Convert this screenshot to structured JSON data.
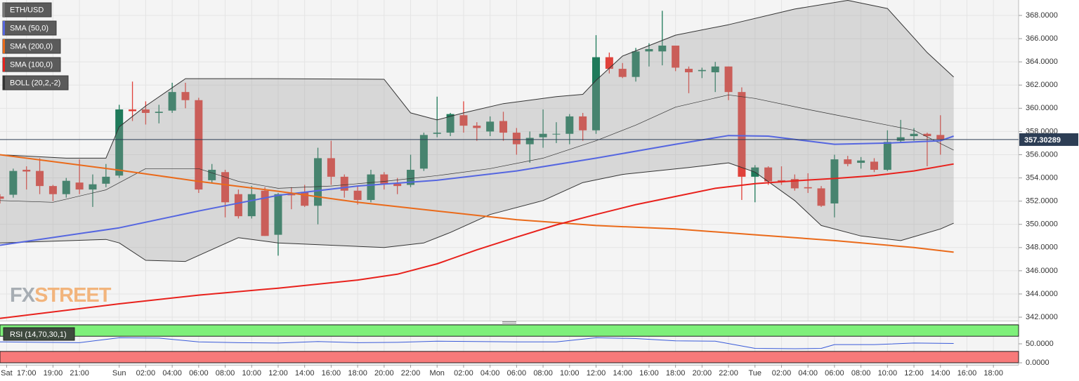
{
  "chart_data": [
    {
      "type": "candlestick",
      "candles": {
        "name": "ETH/USD",
        "up_color": "#1f7a5a",
        "down_color": "#e0413a",
        "x": [
          15,
          16,
          17,
          18,
          19,
          20,
          21,
          22,
          23,
          24,
          25,
          26,
          27,
          28,
          29,
          30,
          31,
          32,
          33,
          34,
          35,
          36,
          37,
          38,
          39,
          40,
          41,
          42,
          43,
          44,
          45,
          46,
          47,
          48,
          49,
          50,
          51,
          52,
          53,
          54,
          55,
          56,
          57,
          58,
          59,
          60,
          61,
          62,
          63,
          64,
          65,
          66,
          67,
          68,
          69,
          70,
          71,
          72,
          73,
          74,
          75,
          76,
          77,
          78,
          79,
          80,
          81,
          82,
          83,
          84,
          85,
          86
        ],
        "open": [
          352.4,
          352.55,
          354.7,
          354.6,
          353.3,
          352.6,
          353.6,
          353.0,
          353.5,
          354.2,
          359.9,
          359.9,
          359.6,
          359.8,
          361.4,
          360.7,
          353.8,
          354.5,
          352.6,
          350.7,
          352.9,
          349.1,
          352.6,
          352.8,
          351.6,
          355.7,
          354.1,
          352.9,
          352.1,
          354.3,
          353.5,
          353.4,
          354.8,
          357.8,
          357.9,
          359.4,
          358.5,
          358.0,
          358.9,
          357.9,
          356.9,
          357.5,
          357.8,
          357.8,
          359.3,
          358.1,
          364.4,
          363.4,
          362.7,
          364.9,
          364.9,
          365.4,
          363.4,
          363.2,
          363.1,
          363.6,
          361.4,
          354.1,
          354.9,
          353.8,
          353.9,
          353.2,
          353.1,
          351.8,
          355.6,
          355.3,
          355.4,
          354.7,
          357.2,
          357.6,
          357.8,
          357.7
        ],
        "high": [
          352.6,
          354.8,
          355.0,
          355.7,
          353.4,
          354.0,
          355.6,
          354.3,
          355.2,
          360.3,
          362.3,
          360.6,
          360.3,
          362.2,
          362.2,
          360.9,
          355.2,
          354.7,
          353.0,
          353.3,
          353.2,
          352.7,
          353.2,
          353.4,
          356.6,
          357.2,
          354.3,
          353.3,
          354.7,
          354.5,
          354.0,
          356.0,
          357.9,
          361.0,
          359.6,
          360.6,
          358.8,
          359.3,
          359.7,
          358.3,
          358.0,
          359.9,
          358.8,
          359.5,
          359.6,
          366.3,
          364.8,
          363.9,
          365.2,
          365.6,
          368.4,
          365.4,
          363.6,
          363.5,
          364.0,
          363.6,
          361.8,
          355.1,
          355.0,
          355.0,
          354.3,
          354.4,
          353.3,
          356.0,
          355.9,
          355.8,
          355.7,
          358.1,
          359.0,
          358.3,
          357.9,
          359.4
        ],
        "low": [
          351.8,
          352.3,
          353.0,
          352.6,
          352.0,
          352.3,
          352.6,
          351.5,
          353.2,
          354.0,
          358.9,
          358.6,
          358.7,
          359.6,
          360.0,
          352.7,
          353.6,
          350.6,
          350.5,
          350.5,
          349.0,
          347.3,
          351.3,
          351.5,
          350.0,
          353.4,
          352.3,
          351.7,
          351.9,
          353.0,
          352.6,
          353.2,
          354.6,
          357.5,
          357.6,
          357.9,
          357.2,
          357.6,
          357.2,
          356.0,
          355.3,
          356.6,
          357.0,
          356.9,
          357.2,
          357.8,
          363.0,
          362.6,
          362.3,
          363.6,
          363.7,
          363.2,
          361.3,
          362.6,
          361.4,
          360.7,
          352.1,
          351.9,
          353.4,
          353.4,
          352.9,
          352.7,
          351.5,
          350.6,
          355.0,
          354.8,
          354.5,
          354.6,
          357.0,
          357.2,
          355.0,
          356.0
        ],
        "close": [
          352.2,
          354.6,
          354.55,
          353.3,
          352.6,
          353.75,
          353.0,
          353.45,
          354.1,
          359.9,
          359.75,
          359.6,
          359.7,
          361.4,
          360.7,
          353.0,
          354.7,
          351.9,
          350.7,
          352.6,
          349.0,
          352.6,
          352.5,
          351.6,
          355.7,
          354.1,
          352.9,
          352.1,
          354.3,
          353.5,
          353.3,
          354.7,
          357.7,
          357.9,
          359.5,
          358.5,
          358.3,
          358.85,
          357.9,
          356.9,
          357.45,
          357.8,
          357.8,
          359.3,
          358.1,
          364.4,
          363.4,
          362.7,
          364.9,
          365.1,
          365.4,
          363.5,
          363.1,
          363.3,
          363.6,
          361.4,
          354.1,
          354.9,
          353.7,
          353.7,
          353.1,
          353.1,
          351.6,
          355.6,
          355.2,
          355.5,
          354.7,
          357.1,
          357.5,
          357.8,
          357.6,
          357.3
        ]
      },
      "series": [
        {
          "name": "SMA (50,0)",
          "color": "#5566e0",
          "x": [
            15,
            24,
            30,
            36,
            42,
            48,
            54,
            60,
            66,
            70,
            73,
            78,
            82,
            86,
            87
          ],
          "values": [
            348.2,
            349.7,
            351.15,
            352.5,
            353.3,
            353.8,
            354.6,
            355.7,
            356.9,
            357.65,
            357.6,
            356.9,
            357.0,
            357.2,
            357.6
          ]
        },
        {
          "name": "SMA (200,0)",
          "color": "#ea6a1a",
          "x": [
            15,
            24,
            30,
            36,
            42,
            48,
            54,
            60,
            66,
            72,
            78,
            84,
            87
          ],
          "values": [
            356.0,
            354.67,
            353.7,
            352.85,
            351.9,
            351.15,
            350.4,
            349.9,
            349.6,
            349.1,
            348.6,
            348.0,
            347.6
          ]
        },
        {
          "name": "SMA (100,0)",
          "color": "#e8211c",
          "x": [
            15,
            24,
            30,
            36,
            42,
            45,
            48,
            51,
            54,
            57,
            60,
            63,
            66,
            69,
            72,
            75,
            78,
            81,
            84,
            87
          ],
          "values": [
            341.9,
            343.15,
            343.9,
            344.5,
            345.2,
            345.7,
            346.6,
            347.8,
            348.9,
            349.95,
            350.85,
            351.7,
            352.4,
            353.1,
            353.5,
            353.75,
            353.95,
            354.2,
            354.6,
            355.2
          ]
        }
      ],
      "bollinger": {
        "name": "BOLL (20,2,-2)",
        "color": "#333333",
        "fill": "#9a9a9a",
        "upper": {
          "x": [
            15,
            20,
            23,
            24,
            26,
            29,
            35,
            44,
            46,
            48,
            50,
            53,
            57,
            59,
            60,
            62,
            66,
            70,
            75,
            79,
            82,
            85,
            87
          ],
          "values": [
            356.0,
            355.7,
            355.7,
            358.4,
            360.2,
            362.55,
            362.55,
            362.5,
            359.6,
            359.0,
            359.6,
            360.4,
            361.0,
            361.2,
            362.4,
            364.5,
            366.3,
            367.2,
            368.55,
            369.3,
            368.6,
            364.8,
            362.7
          ]
        },
        "middle": {
          "x": [
            15,
            19,
            23,
            26,
            30,
            33,
            36,
            40,
            44,
            48,
            52,
            56,
            60,
            63,
            66,
            70,
            72,
            76,
            80,
            84,
            87
          ],
          "values": [
            352.05,
            351.9,
            352.97,
            354.8,
            354.8,
            353.7,
            353.1,
            353.3,
            353.7,
            354.2,
            354.8,
            355.7,
            357.2,
            358.55,
            360.1,
            361.15,
            360.85,
            359.9,
            359.0,
            358.1,
            356.4
          ]
        },
        "lower": {
          "x": [
            15,
            23,
            24,
            26,
            29,
            33,
            36,
            44,
            47,
            49,
            52,
            56,
            59,
            62,
            67,
            70,
            72,
            75,
            77,
            80,
            83,
            86,
            87
          ],
          "values": [
            348.4,
            348.7,
            348.4,
            346.9,
            346.8,
            348.85,
            348.4,
            348.0,
            348.4,
            349.3,
            350.85,
            352.05,
            353.6,
            354.3,
            354.9,
            355.3,
            354.5,
            352.05,
            349.9,
            349.0,
            348.6,
            349.6,
            350.1
          ]
        }
      },
      "last_price": 357.30289,
      "watermark": [
        "FX",
        "STREET"
      ],
      "xlim": [
        15,
        91.9
      ],
      "ylim": [
        341.7,
        369.33
      ],
      "yticks": [
        {
          "value": 342,
          "label": "342.0000"
        },
        {
          "value": 344,
          "label": "344.0000"
        },
        {
          "value": 346,
          "label": "346.0000"
        },
        {
          "value": 348,
          "label": "348.0000"
        },
        {
          "value": 350,
          "label": "350.0000"
        },
        {
          "value": 352,
          "label": "352.0000"
        },
        {
          "value": 354,
          "label": "354.0000"
        },
        {
          "value": 356,
          "label": "356.0000"
        },
        {
          "value": 358,
          "label": "358.0000"
        },
        {
          "value": 360,
          "label": "360.0000"
        },
        {
          "value": 362,
          "label": "362.0000"
        },
        {
          "value": 364,
          "label": "364.0000"
        },
        {
          "value": 366,
          "label": "366.0000"
        },
        {
          "value": 368,
          "label": "368.0000"
        }
      ],
      "xticks": [
        {
          "value": 15.5,
          "label": "Sat"
        },
        {
          "value": 17,
          "label": "17:00"
        },
        {
          "value": 19,
          "label": "19:00"
        },
        {
          "value": 21,
          "label": "21:00"
        },
        {
          "value": 24,
          "label": "Sun"
        },
        {
          "value": 26,
          "label": "02:00"
        },
        {
          "value": 28,
          "label": "04:00"
        },
        {
          "value": 30,
          "label": "06:00"
        },
        {
          "value": 32,
          "label": "08:00"
        },
        {
          "value": 34,
          "label": "10:00"
        },
        {
          "value": 36,
          "label": "12:00"
        },
        {
          "value": 38,
          "label": "14:00"
        },
        {
          "value": 40,
          "label": "16:00"
        },
        {
          "value": 42,
          "label": "18:00"
        },
        {
          "value": 44,
          "label": "20:00"
        },
        {
          "value": 46,
          "label": "22:00"
        },
        {
          "value": 48,
          "label": "Mon"
        },
        {
          "value": 50,
          "label": "02:00"
        },
        {
          "value": 52,
          "label": "04:00"
        },
        {
          "value": 54,
          "label": "06:00"
        },
        {
          "value": 56,
          "label": "08:00"
        },
        {
          "value": 58,
          "label": "10:00"
        },
        {
          "value": 60,
          "label": "12:00"
        },
        {
          "value": 62,
          "label": "14:00"
        },
        {
          "value": 64,
          "label": "16:00"
        },
        {
          "value": 66,
          "label": "18:00"
        },
        {
          "value": 68,
          "label": "20:00"
        },
        {
          "value": 70,
          "label": "22:00"
        },
        {
          "value": 72,
          "label": "Tue"
        },
        {
          "value": 74,
          "label": "02:00"
        },
        {
          "value": 76,
          "label": "04:00"
        },
        {
          "value": 78,
          "label": "06:00"
        },
        {
          "value": 80,
          "label": "08:00"
        },
        {
          "value": 82,
          "label": "10:00"
        },
        {
          "value": 84,
          "label": "12:00"
        },
        {
          "value": 86,
          "label": "14:00"
        },
        {
          "value": 88,
          "label": "16:00"
        },
        {
          "value": 90,
          "label": "18:00"
        }
      ],
      "grid": true
    },
    {
      "type": "line",
      "label": "RSI (14,70,30,1)",
      "overbought": 70,
      "oversold": 30,
      "overbought_color": "#7ef07a",
      "oversold_color": "#f77a7a",
      "series": [
        {
          "color": "#3a5bd9",
          "x": [
            15,
            18,
            21,
            24,
            27,
            30,
            33,
            36,
            39,
            42,
            45,
            48,
            51,
            54,
            57,
            60,
            63,
            66,
            69,
            72,
            75,
            77,
            78,
            81,
            84,
            87
          ],
          "values": [
            55,
            54,
            53,
            66,
            65,
            55,
            53,
            52,
            56,
            53,
            54,
            57,
            56,
            55,
            55,
            66,
            64,
            58,
            57,
            38,
            37,
            38,
            48,
            48,
            52,
            51
          ]
        }
      ],
      "xlim": [
        15,
        91.9
      ],
      "ylim": [
        -5.5,
        100
      ],
      "yticks": [
        {
          "value": 50,
          "label": "50.0000"
        },
        {
          "value": 0,
          "label": "0.0000"
        }
      ]
    }
  ]
}
